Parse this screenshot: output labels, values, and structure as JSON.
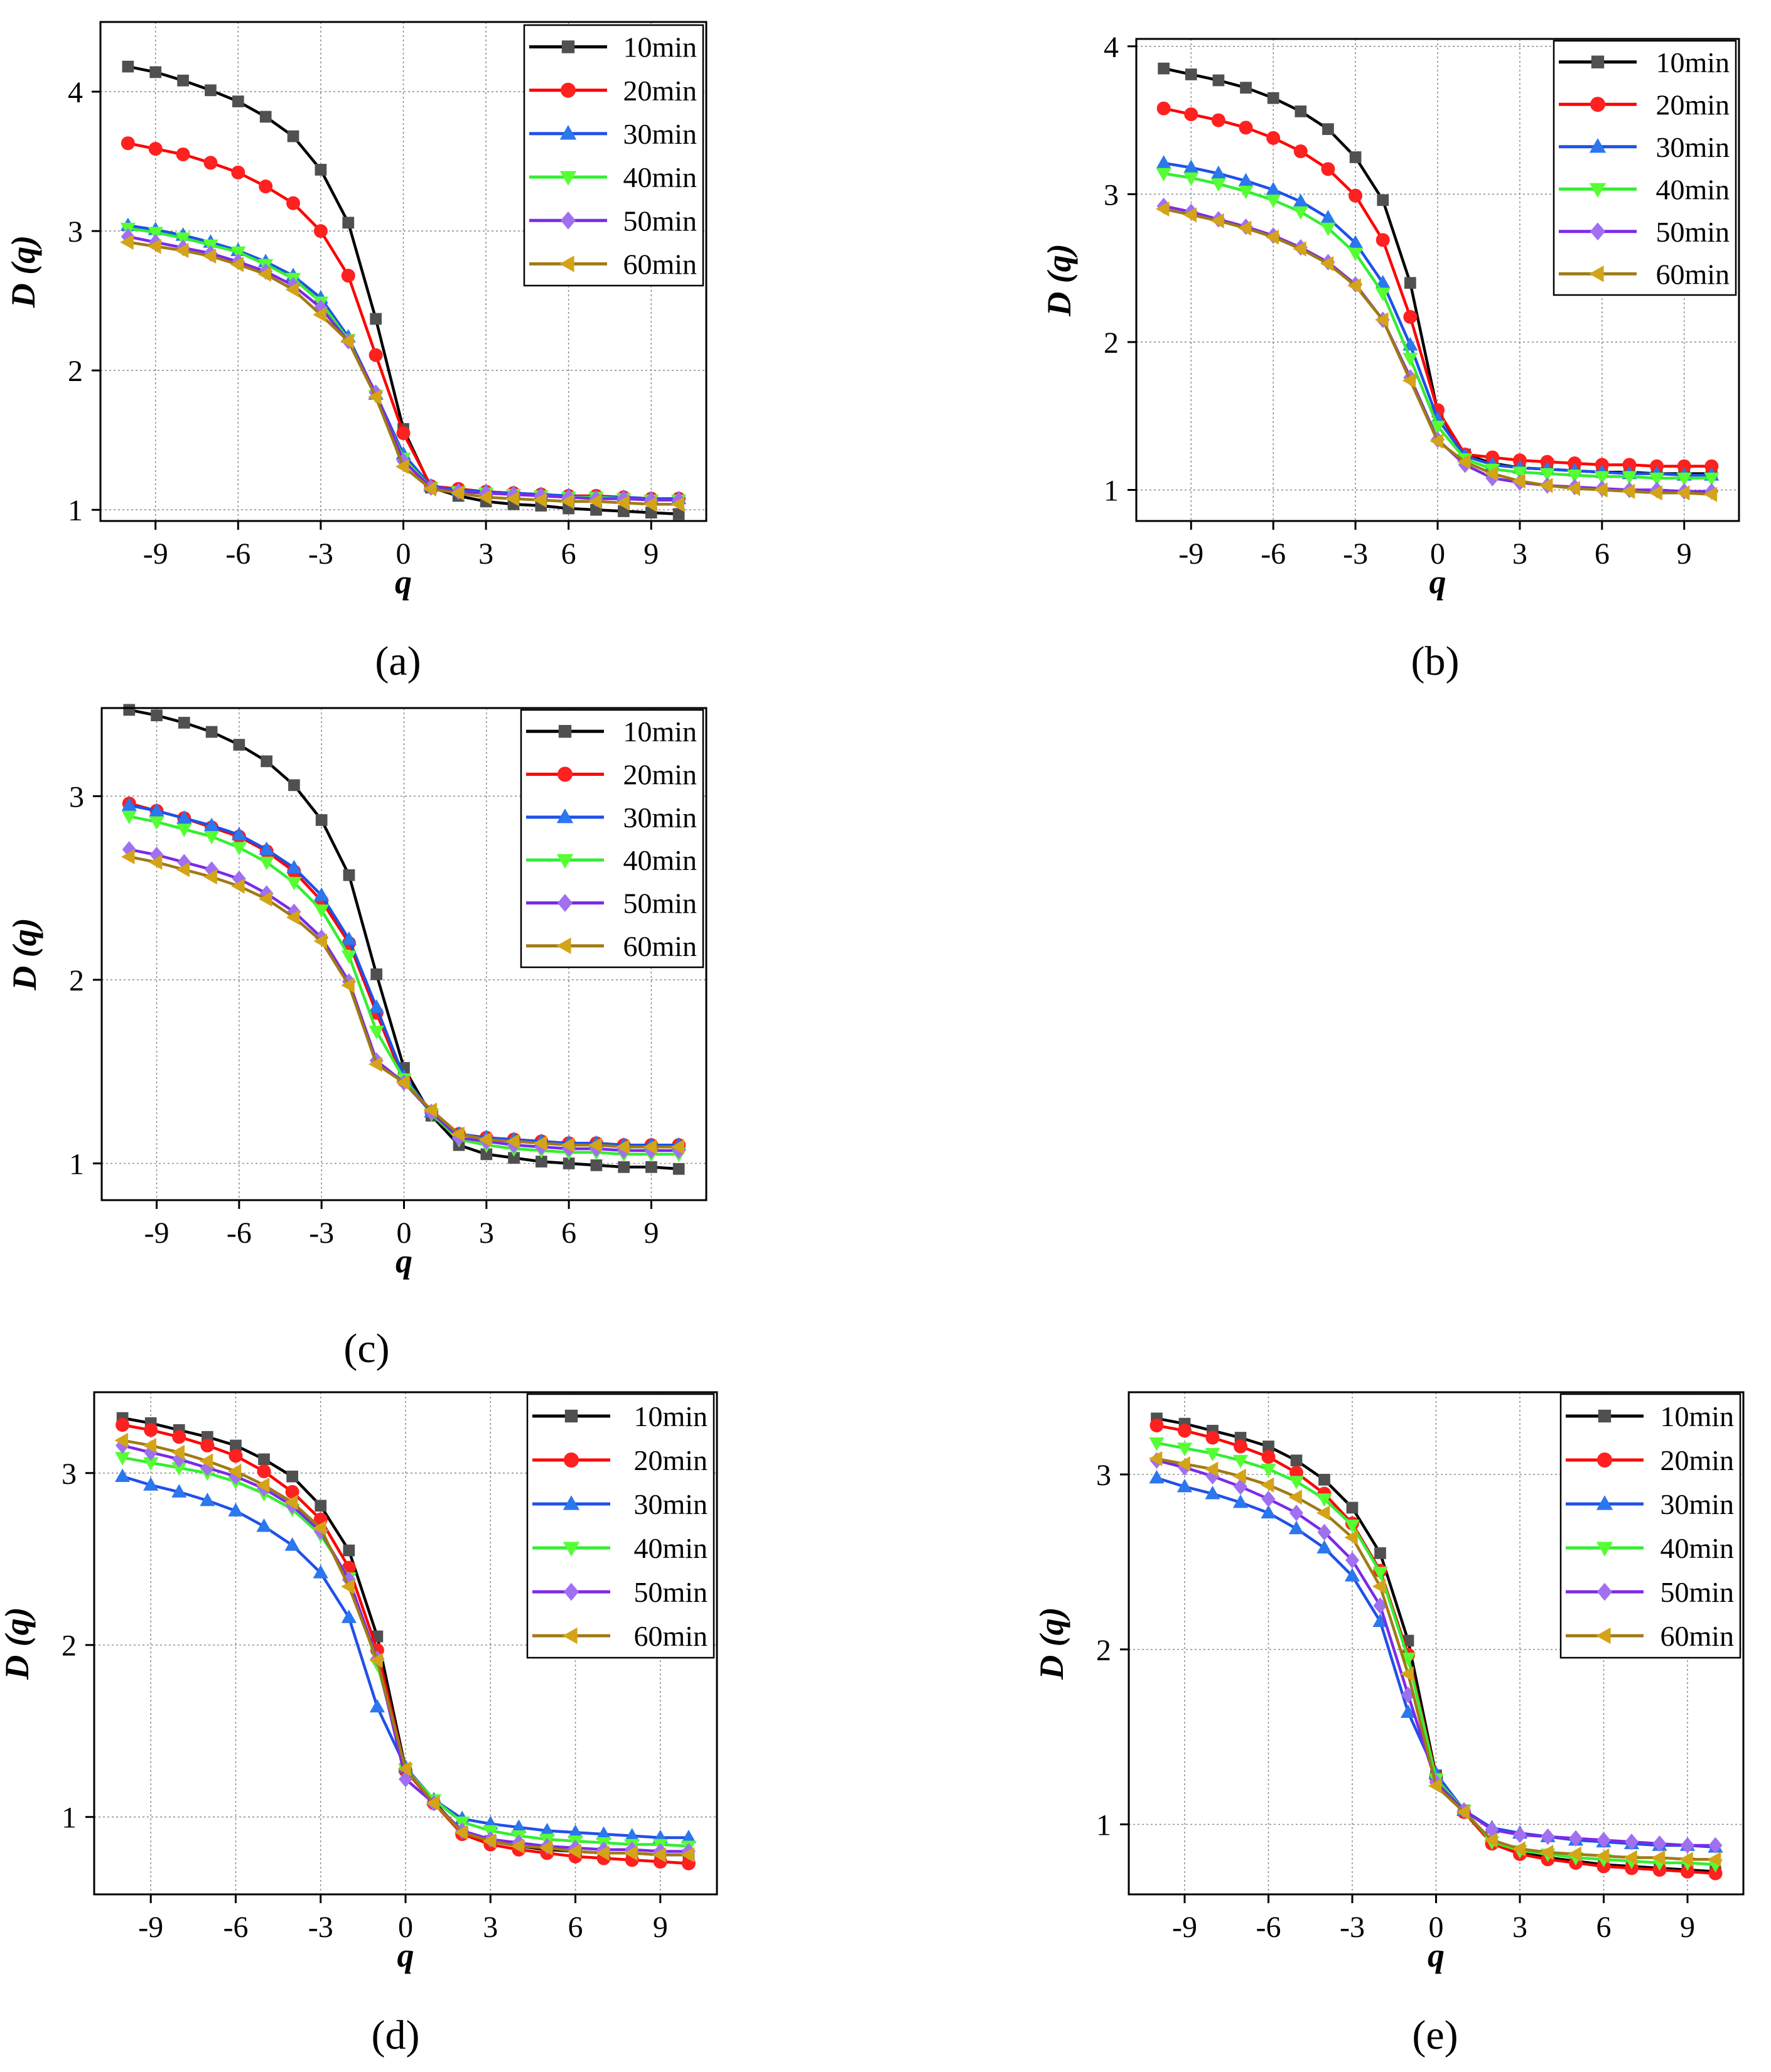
{
  "figure_title": "",
  "colors": {
    "10min": "#000000",
    "20min": "#ff0000",
    "30min": "#1f50e8",
    "40min": "#33ee33",
    "50min": "#7c2ae8",
    "60min": "#a07a14",
    "10min_marker": "#505050",
    "20min_marker": "#ff2020",
    "30min_marker": "#2a77ee",
    "40min_marker": "#55ff33",
    "50min_marker": "#a070f0",
    "60min_marker": "#d4a418"
  },
  "chart_data": [
    {
      "id": "a",
      "type": "line",
      "panel_label": "(a)",
      "xlabel": "q",
      "ylabel": "D (q)",
      "xlim": [
        -11,
        11
      ],
      "ylim": [
        0.92,
        4.5
      ],
      "xticks": [
        "-9",
        "-6",
        "-3",
        "0",
        "3",
        "6",
        "9"
      ],
      "yticks": [
        "1",
        "2",
        "3",
        "4"
      ],
      "grid": true,
      "legend_position": "top-right",
      "x": [
        -10,
        -9,
        -8,
        -7,
        -6,
        -5,
        -4,
        -3,
        -2,
        -1,
        0,
        1,
        2,
        3,
        4,
        5,
        6,
        7,
        8,
        9,
        10
      ],
      "series": [
        {
          "name": "10min",
          "marker": "square",
          "values": [
            4.18,
            4.14,
            4.08,
            4.01,
            3.93,
            3.82,
            3.68,
            3.44,
            3.06,
            2.37,
            1.58,
            1.16,
            1.1,
            1.06,
            1.04,
            1.03,
            1.01,
            1.0,
            0.99,
            0.98,
            0.97
          ]
        },
        {
          "name": "20min",
          "marker": "circle",
          "values": [
            3.63,
            3.59,
            3.55,
            3.49,
            3.42,
            3.32,
            3.2,
            3.0,
            2.68,
            2.11,
            1.55,
            1.17,
            1.15,
            1.13,
            1.12,
            1.11,
            1.1,
            1.1,
            1.09,
            1.08,
            1.08
          ]
        },
        {
          "name": "30min",
          "marker": "triangle-up",
          "values": [
            3.04,
            3.01,
            2.97,
            2.92,
            2.86,
            2.78,
            2.68,
            2.52,
            2.24,
            1.83,
            1.4,
            1.17,
            1.14,
            1.13,
            1.12,
            1.11,
            1.1,
            1.09,
            1.09,
            1.08,
            1.08
          ]
        },
        {
          "name": "40min",
          "marker": "triangle-down",
          "values": [
            3.02,
            2.99,
            2.95,
            2.9,
            2.85,
            2.76,
            2.66,
            2.49,
            2.22,
            1.82,
            1.37,
            1.16,
            1.13,
            1.12,
            1.11,
            1.1,
            1.09,
            1.09,
            1.08,
            1.07,
            1.07
          ]
        },
        {
          "name": "50min",
          "marker": "diamond",
          "values": [
            2.96,
            2.92,
            2.88,
            2.84,
            2.78,
            2.71,
            2.61,
            2.45,
            2.21,
            1.84,
            1.35,
            1.16,
            1.13,
            1.12,
            1.11,
            1.1,
            1.09,
            1.08,
            1.08,
            1.07,
            1.07
          ]
        },
        {
          "name": "60min",
          "marker": "triangle-left",
          "values": [
            2.92,
            2.89,
            2.86,
            2.82,
            2.76,
            2.69,
            2.58,
            2.4,
            2.21,
            1.81,
            1.31,
            1.15,
            1.12,
            1.09,
            1.08,
            1.07,
            1.06,
            1.06,
            1.05,
            1.04,
            1.04
          ]
        }
      ]
    },
    {
      "id": "b",
      "type": "line",
      "panel_label": "(b)",
      "xlabel": "q",
      "ylabel": "D (q)",
      "xlim": [
        -11,
        11
      ],
      "ylim": [
        0.79,
        4.05
      ],
      "xticks": [
        "-9",
        "-6",
        "-3",
        "0",
        "3",
        "6",
        "9"
      ],
      "yticks": [
        "1",
        "2",
        "3",
        "4"
      ],
      "grid": true,
      "legend_position": "top-right",
      "x": [
        -10,
        -9,
        -8,
        -7,
        -6,
        -5,
        -4,
        -3,
        -2,
        -1,
        0,
        1,
        2,
        3,
        4,
        5,
        6,
        7,
        8,
        9,
        10
      ],
      "series": [
        {
          "name": "10min",
          "marker": "square",
          "values": [
            3.85,
            3.81,
            3.77,
            3.72,
            3.65,
            3.56,
            3.44,
            3.25,
            2.96,
            2.4,
            1.53,
            1.24,
            1.18,
            1.15,
            1.14,
            1.13,
            1.12,
            1.12,
            1.11,
            1.11,
            1.11
          ]
        },
        {
          "name": "20min",
          "marker": "circle",
          "values": [
            3.58,
            3.54,
            3.5,
            3.45,
            3.38,
            3.29,
            3.17,
            2.99,
            2.69,
            2.17,
            1.54,
            1.24,
            1.22,
            1.2,
            1.19,
            1.18,
            1.17,
            1.17,
            1.16,
            1.16,
            1.16
          ]
        },
        {
          "name": "30min",
          "marker": "triangle-up",
          "values": [
            3.21,
            3.18,
            3.14,
            3.09,
            3.03,
            2.95,
            2.84,
            2.67,
            2.4,
            1.98,
            1.48,
            1.23,
            1.17,
            1.15,
            1.14,
            1.13,
            1.12,
            1.11,
            1.11,
            1.1,
            1.1
          ]
        },
        {
          "name": "40min",
          "marker": "triangle-down",
          "values": [
            3.14,
            3.11,
            3.07,
            3.02,
            2.96,
            2.88,
            2.77,
            2.6,
            2.33,
            1.89,
            1.43,
            1.21,
            1.14,
            1.12,
            1.11,
            1.1,
            1.09,
            1.09,
            1.08,
            1.08,
            1.08
          ]
        },
        {
          "name": "50min",
          "marker": "diamond",
          "values": [
            2.92,
            2.88,
            2.83,
            2.78,
            2.72,
            2.64,
            2.54,
            2.39,
            2.15,
            1.76,
            1.34,
            1.17,
            1.08,
            1.05,
            1.03,
            1.02,
            1.01,
            1.0,
            1.0,
            0.99,
            0.99
          ]
        },
        {
          "name": "60min",
          "marker": "triangle-left",
          "values": [
            2.9,
            2.86,
            2.82,
            2.77,
            2.71,
            2.63,
            2.53,
            2.38,
            2.15,
            1.74,
            1.33,
            1.19,
            1.11,
            1.06,
            1.03,
            1.01,
            1.0,
            0.99,
            0.98,
            0.98,
            0.97
          ]
        }
      ]
    },
    {
      "id": "c",
      "type": "line",
      "panel_label": "(c)",
      "xlabel": "q",
      "ylabel": "D (q)",
      "xlim": [
        -11,
        11
      ],
      "ylim": [
        0.8,
        3.48
      ],
      "xticks": [
        "-9",
        "-6",
        "-3",
        "0",
        "3",
        "6",
        "9"
      ],
      "yticks": [
        "1",
        "2",
        "3"
      ],
      "grid": true,
      "legend_position": "top-right",
      "x": [
        -10,
        -9,
        -8,
        -7,
        -6,
        -5,
        -4,
        -3,
        -2,
        -1,
        0,
        1,
        2,
        3,
        4,
        5,
        6,
        7,
        8,
        9,
        10
      ],
      "series": [
        {
          "name": "10min",
          "marker": "square",
          "values": [
            3.47,
            3.44,
            3.4,
            3.35,
            3.28,
            3.19,
            3.06,
            2.87,
            2.57,
            2.03,
            1.52,
            1.26,
            1.1,
            1.05,
            1.03,
            1.01,
            1.0,
            0.99,
            0.98,
            0.98,
            0.97
          ]
        },
        {
          "name": "20min",
          "marker": "circle",
          "values": [
            2.96,
            2.92,
            2.88,
            2.83,
            2.78,
            2.7,
            2.59,
            2.43,
            2.2,
            1.82,
            1.45,
            1.28,
            1.16,
            1.14,
            1.13,
            1.12,
            1.11,
            1.11,
            1.1,
            1.1,
            1.1
          ]
        },
        {
          "name": "30min",
          "marker": "triangle-up",
          "values": [
            2.95,
            2.92,
            2.88,
            2.84,
            2.79,
            2.71,
            2.61,
            2.46,
            2.22,
            1.85,
            1.47,
            1.28,
            1.16,
            1.14,
            1.13,
            1.12,
            1.11,
            1.11,
            1.1,
            1.1,
            1.1
          ]
        },
        {
          "name": "40min",
          "marker": "triangle-down",
          "values": [
            2.89,
            2.86,
            2.82,
            2.78,
            2.72,
            2.64,
            2.53,
            2.38,
            2.13,
            1.72,
            1.46,
            1.27,
            1.13,
            1.1,
            1.08,
            1.07,
            1.06,
            1.06,
            1.05,
            1.05,
            1.05
          ]
        },
        {
          "name": "50min",
          "marker": "diamond",
          "values": [
            2.71,
            2.68,
            2.64,
            2.6,
            2.55,
            2.47,
            2.37,
            2.23,
            1.99,
            1.56,
            1.44,
            1.28,
            1.14,
            1.12,
            1.1,
            1.09,
            1.08,
            1.08,
            1.07,
            1.07,
            1.07
          ]
        },
        {
          "name": "60min",
          "marker": "triangle-left",
          "values": [
            2.67,
            2.64,
            2.6,
            2.56,
            2.51,
            2.44,
            2.34,
            2.21,
            1.97,
            1.54,
            1.44,
            1.29,
            1.16,
            1.13,
            1.12,
            1.11,
            1.1,
            1.1,
            1.09,
            1.09,
            1.09
          ]
        }
      ]
    },
    {
      "id": "d",
      "type": "line",
      "panel_label": "(d)",
      "xlabel": "q",
      "ylabel": "D (q)",
      "xlim": [
        -11,
        11
      ],
      "ylim": [
        0.55,
        3.47
      ],
      "xticks": [
        "-9",
        "-6",
        "-3",
        "0",
        "3",
        "6",
        "9"
      ],
      "yticks": [
        "1",
        "2",
        "3"
      ],
      "grid": true,
      "legend_position": "top-right",
      "x": [
        -10,
        -9,
        -8,
        -7,
        -6,
        -5,
        -4,
        -3,
        -2,
        -1,
        0,
        1,
        2,
        3,
        4,
        5,
        6,
        7,
        8,
        9,
        10
      ],
      "series": [
        {
          "name": "10min",
          "marker": "square",
          "values": [
            3.32,
            3.29,
            3.25,
            3.21,
            3.16,
            3.08,
            2.98,
            2.81,
            2.55,
            2.05,
            1.28,
            1.09,
            0.91,
            0.86,
            0.83,
            0.81,
            0.8,
            0.79,
            0.79,
            0.78,
            0.78
          ]
        },
        {
          "name": "20min",
          "marker": "circle",
          "values": [
            3.28,
            3.25,
            3.21,
            3.16,
            3.1,
            3.01,
            2.89,
            2.73,
            2.45,
            1.97,
            1.27,
            1.08,
            0.9,
            0.84,
            0.81,
            0.79,
            0.77,
            0.76,
            0.75,
            0.74,
            0.73
          ]
        },
        {
          "name": "30min",
          "marker": "triangle-up",
          "values": [
            2.98,
            2.93,
            2.89,
            2.84,
            2.78,
            2.69,
            2.58,
            2.42,
            2.16,
            1.64,
            1.29,
            1.1,
            0.99,
            0.96,
            0.94,
            0.92,
            0.91,
            0.9,
            0.89,
            0.88,
            0.88
          ]
        },
        {
          "name": "40min",
          "marker": "triangle-down",
          "values": [
            3.09,
            3.06,
            3.03,
            3.0,
            2.95,
            2.88,
            2.79,
            2.64,
            2.39,
            1.89,
            1.28,
            1.1,
            0.97,
            0.92,
            0.89,
            0.87,
            0.86,
            0.85,
            0.84,
            0.84,
            0.83
          ]
        },
        {
          "name": "50min",
          "marker": "diamond",
          "values": [
            3.16,
            3.12,
            3.08,
            3.03,
            2.98,
            2.91,
            2.81,
            2.66,
            2.38,
            1.92,
            1.22,
            1.08,
            0.92,
            0.87,
            0.85,
            0.83,
            0.82,
            0.81,
            0.81,
            0.8,
            0.8
          ]
        },
        {
          "name": "60min",
          "marker": "triangle-left",
          "values": [
            3.19,
            3.16,
            3.12,
            3.07,
            3.01,
            2.93,
            2.83,
            2.68,
            2.34,
            1.91,
            1.28,
            1.08,
            0.91,
            0.86,
            0.83,
            0.82,
            0.8,
            0.79,
            0.79,
            0.78,
            0.78
          ]
        }
      ]
    },
    {
      "id": "e",
      "type": "line",
      "panel_label": "(e)",
      "xlabel": "q",
      "ylabel": "D (q)",
      "xlim": [
        -11,
        11
      ],
      "ylim": [
        0.6,
        3.47
      ],
      "xticks": [
        "-9",
        "-6",
        "-3",
        "0",
        "3",
        "6",
        "9"
      ],
      "yticks": [
        "1",
        "2",
        "3"
      ],
      "grid": true,
      "legend_position": "top-right",
      "x": [
        -10,
        -9,
        -8,
        -7,
        -6,
        -5,
        -4,
        -3,
        -2,
        -1,
        0,
        1,
        2,
        3,
        4,
        5,
        6,
        7,
        8,
        9,
        10
      ],
      "series": [
        {
          "name": "10min",
          "marker": "square",
          "values": [
            3.32,
            3.29,
            3.25,
            3.21,
            3.16,
            3.08,
            2.97,
            2.81,
            2.55,
            2.05,
            1.28,
            1.08,
            0.9,
            0.84,
            0.81,
            0.79,
            0.77,
            0.76,
            0.75,
            0.74,
            0.73
          ]
        },
        {
          "name": "20min",
          "marker": "circle",
          "values": [
            3.28,
            3.25,
            3.21,
            3.16,
            3.1,
            3.01,
            2.89,
            2.72,
            2.45,
            1.97,
            1.27,
            1.07,
            0.89,
            0.83,
            0.8,
            0.78,
            0.76,
            0.75,
            0.74,
            0.73,
            0.72
          ]
        },
        {
          "name": "30min",
          "marker": "triangle-up",
          "values": [
            2.98,
            2.93,
            2.89,
            2.84,
            2.78,
            2.69,
            2.58,
            2.42,
            2.16,
            1.64,
            1.29,
            1.08,
            0.98,
            0.95,
            0.93,
            0.91,
            0.9,
            0.89,
            0.88,
            0.88,
            0.87
          ]
        },
        {
          "name": "40min",
          "marker": "triangle-down",
          "values": [
            3.18,
            3.15,
            3.12,
            3.08,
            3.03,
            2.96,
            2.86,
            2.71,
            2.44,
            1.95,
            1.26,
            1.08,
            0.9,
            0.85,
            0.83,
            0.81,
            0.8,
            0.79,
            0.78,
            0.78,
            0.77
          ]
        },
        {
          "name": "50min",
          "marker": "diamond",
          "values": [
            3.08,
            3.04,
            2.99,
            2.93,
            2.86,
            2.78,
            2.67,
            2.51,
            2.25,
            1.74,
            1.24,
            1.08,
            0.97,
            0.94,
            0.93,
            0.92,
            0.91,
            0.9,
            0.89,
            0.88,
            0.88
          ]
        },
        {
          "name": "60min",
          "marker": "triangle-left",
          "values": [
            3.09,
            3.06,
            3.03,
            2.99,
            2.94,
            2.87,
            2.78,
            2.64,
            2.36,
            1.86,
            1.22,
            1.07,
            0.91,
            0.86,
            0.84,
            0.83,
            0.82,
            0.81,
            0.81,
            0.8,
            0.8
          ]
        }
      ]
    }
  ]
}
